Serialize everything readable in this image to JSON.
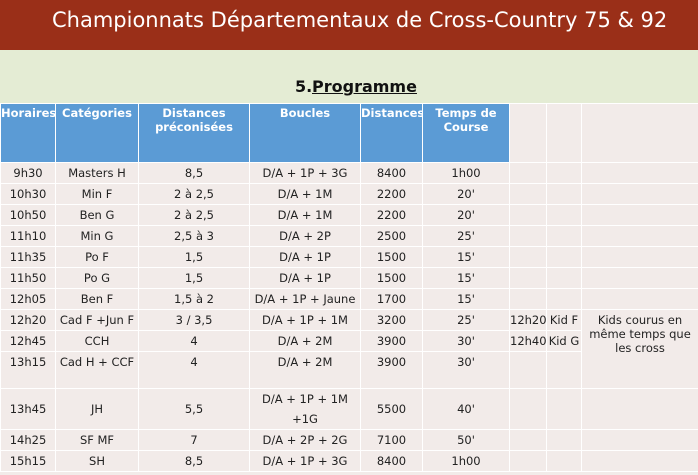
{
  "title": "Championnats Départementaux de Cross-Country 75 & 92",
  "section": {
    "number": "5.",
    "label": "Programme"
  },
  "headers": [
    "Horaires",
    "Catégories",
    "Distances préconisées",
    "Boucles",
    "Distances",
    "Temps de Course"
  ],
  "rows": [
    [
      "9h30",
      "Masters H",
      "8,5",
      "D/A + 1P + 3G",
      "8400",
      "1h00"
    ],
    [
      "10h30",
      "Min F",
      "2 à 2,5",
      "D/A + 1M",
      "2200",
      "20'"
    ],
    [
      "10h50",
      "Ben G",
      "2 à 2,5",
      "D/A + 1M",
      "2200",
      "20'"
    ],
    [
      "11h10",
      "Min G",
      "2,5 à 3",
      "D/A + 2P",
      "2500",
      "25'"
    ],
    [
      "11h35",
      "Po F",
      "1,5",
      "D/A + 1P",
      "1500",
      "15'"
    ],
    [
      "11h50",
      "Po G",
      "1,5",
      "D/A + 1P",
      "1500",
      "15'"
    ],
    [
      "12h05",
      "Ben F",
      "1,5 à 2",
      "D/A + 1P + Jaune",
      "1700",
      "15'"
    ],
    [
      "12h20",
      "Cad F +Jun F",
      "3 / 3,5",
      "D/A + 1P + 1M",
      "3200",
      "25'"
    ],
    [
      "12h45",
      "CCH",
      "4",
      "D/A + 2M",
      "3900",
      "30'"
    ],
    [
      "13h15",
      "Cad H + CCF",
      "4",
      "D/A + 2M",
      "3900",
      "30'"
    ],
    [
      "13h45",
      "JH",
      "5,5",
      "D/A + 1P + 1M +1G",
      "5500",
      "40'"
    ],
    [
      "14h25",
      "SF MF",
      "7",
      "D/A + 2P + 2G",
      "7100",
      "50'"
    ],
    [
      "15h15",
      "SH",
      "8,5",
      "D/A + 1P + 3G",
      "8400",
      "1h00"
    ]
  ],
  "kids": [
    {
      "time": "12h20",
      "label": "Kid F"
    },
    {
      "time": "12h40",
      "label": "Kid G"
    }
  ],
  "kids_note": "Kids courus en même temps que les cross"
}
